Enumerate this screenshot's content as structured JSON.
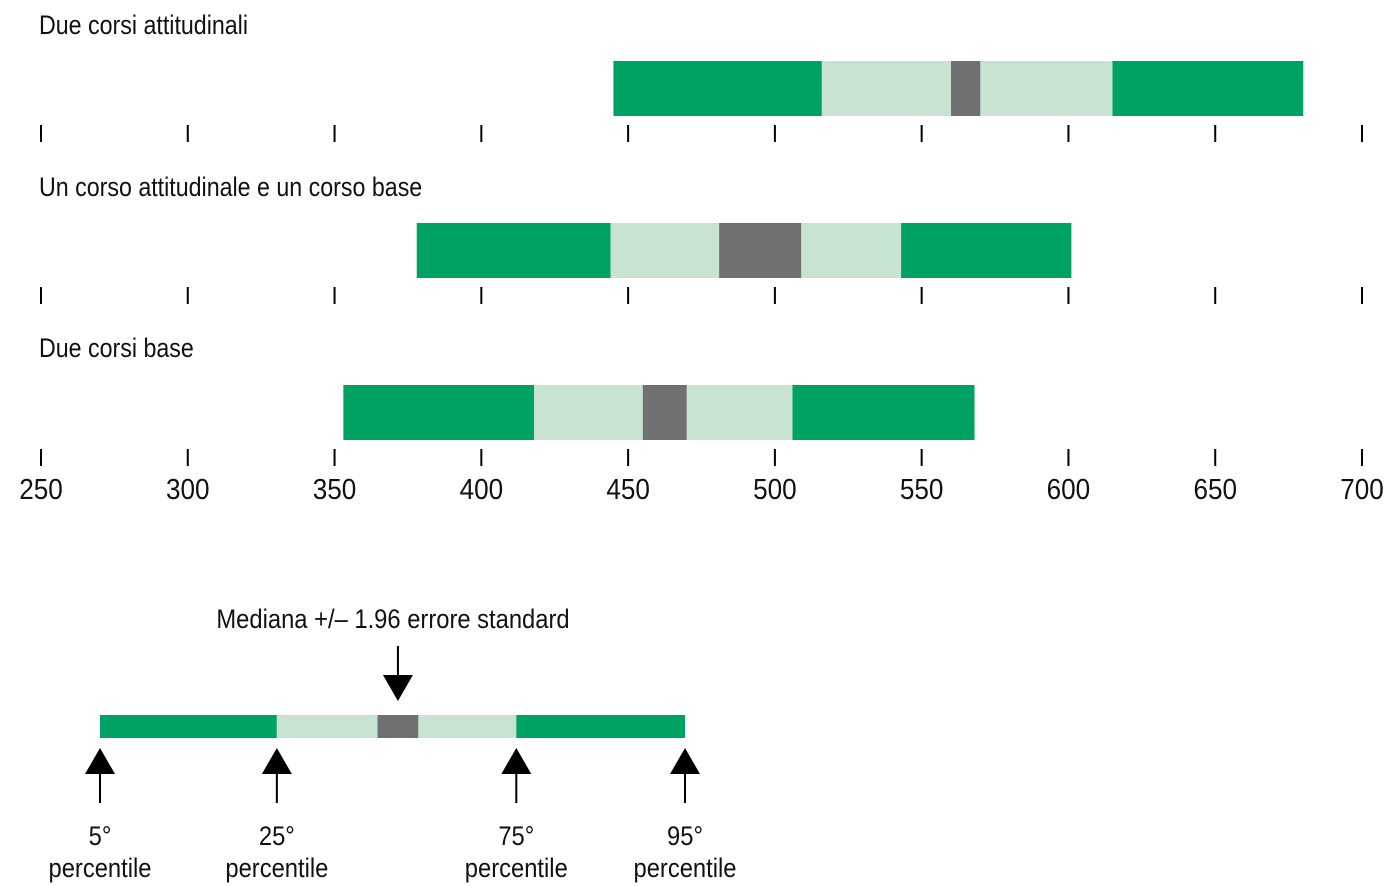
{
  "chart_data": {
    "type": "percentile_bar",
    "x_axis": {
      "min": 250,
      "max": 700,
      "ticks": [
        250,
        300,
        350,
        400,
        450,
        500,
        550,
        600,
        650,
        700
      ]
    },
    "rows": [
      {
        "label": "Due corsi attitudinali",
        "p5": 445,
        "p25": 516,
        "median_ci_low": 560,
        "median_ci_high": 570,
        "p75": 615,
        "p95": 680
      },
      {
        "label": "Un corso attitudinale e un corso base",
        "p5": 378,
        "p25": 444,
        "median_ci_low": 481,
        "median_ci_high": 509,
        "p75": 543,
        "p95": 601
      },
      {
        "label": "Due corsi base",
        "p5": 353,
        "p25": 418,
        "median_ci_low": 455,
        "median_ci_high": 470,
        "p75": 506,
        "p95": 568
      }
    ],
    "legend": {
      "median_label": "Mediana +/– 1.96 errore standard",
      "percentiles": [
        {
          "number": "5°",
          "word": "percentile"
        },
        {
          "number": "25°",
          "word": "percentile"
        },
        {
          "number": "75°",
          "word": "percentile"
        },
        {
          "number": "95°",
          "word": "percentile"
        }
      ]
    },
    "colors": {
      "outer": "#00a264",
      "inner": "#c9e3d2",
      "median": "#707070",
      "axis": "#000000"
    }
  }
}
